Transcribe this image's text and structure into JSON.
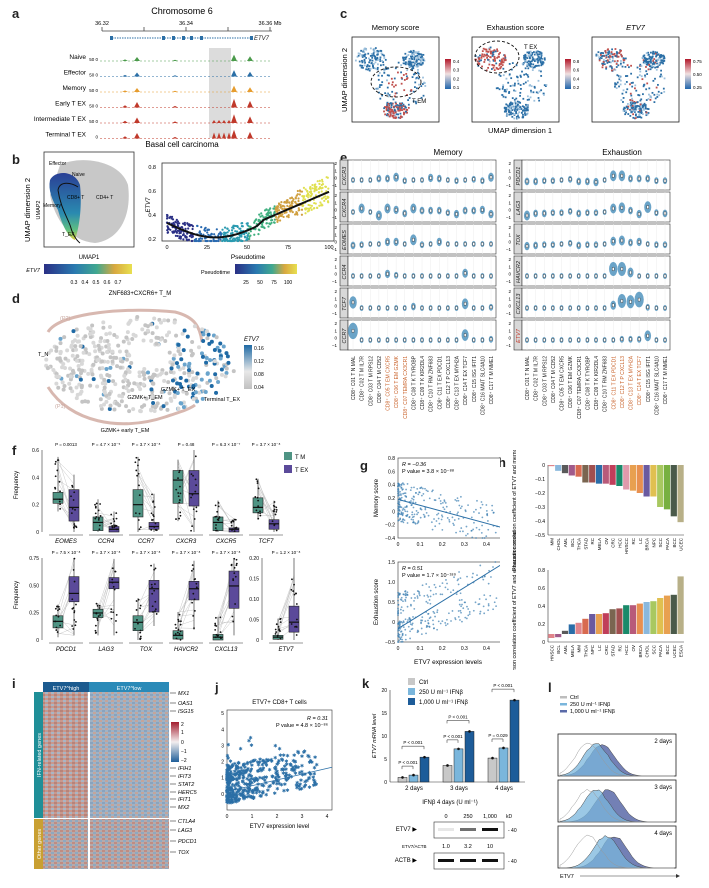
{
  "panel_labels": [
    "a",
    "b",
    "c",
    "d",
    "e",
    "f",
    "g",
    "h",
    "i",
    "j",
    "k",
    "l"
  ],
  "colors": {
    "blue": "#2b6fa6",
    "red": "#c0392b",
    "green": "#4a9a4a",
    "orange": "#e69c2e",
    "tm": "#4f9484",
    "tex": "#5b4a9a",
    "ctrl": "#c8c8c8",
    "ifn250": "#7ab6dc",
    "ifn1000": "#1d5c99",
    "orange_label": "#c9622a",
    "teal_bar": "#1f8f98",
    "gold_bar": "#c9a032"
  },
  "a": {
    "chrom_title": "Chromosome 6",
    "ticks": [
      "36.32",
      "36.34",
      "36.36 Mb"
    ],
    "gene": "ETV7",
    "tracks": [
      "Naive",
      "Effector",
      "Memory",
      "Early T_EX",
      "Intermediate T_EX",
      "Terminal T_EX"
    ],
    "ymax_label": "50",
    "ymin_label": "0",
    "caption": "Basal cell carcinoma"
  },
  "b": {
    "umap_ylabel": "UMAP dimension 2",
    "umap_inner_ylabel": "UMAP2",
    "umap_xlabel": "UMAP1",
    "annotations": [
      "Effector",
      "Naive",
      "CD8+ T",
      "CD4+ T",
      "Memory",
      "T_EX"
    ],
    "etv7_cbar_label": "ETV7",
    "etv7_cbar_ticks": [
      "0.3",
      "0.4",
      "0.5",
      "0.6",
      "0.7"
    ],
    "pseudo_cbar_label": "Pseudotime",
    "pseudo_cbar_ticks": [
      "25",
      "50",
      "75",
      "100"
    ]
  },
  "c": {
    "titles": [
      "Memory score",
      "Exhaustion score",
      "ETV7"
    ],
    "ylabel": "UMAP dimension 2",
    "xlabel": "UMAP dimension 1",
    "cbar1": [
      "0.4",
      "0.3",
      "0.2",
      "0.1"
    ],
    "cbar2": [
      "0.8",
      "0.6",
      "0.4",
      "0.2"
    ],
    "cbar3": [
      "0.75",
      "0.50",
      "0.25"
    ],
    "ann1": "T_EM",
    "ann2": "T_EX"
  },
  "d": {
    "top_label": "ZNF683+CXCR6+ T_M",
    "path_p2": "(P2)",
    "path_p1": "(P1)",
    "tn": "T_N",
    "gzmk_tem": "GZMK+ T_EM",
    "gzmk_tex": "GZMK+ T_EX",
    "terminal": "Terminal T_EX",
    "gzmk_early": "GZMK+ early T_EM",
    "cbar_label": "ETV7",
    "cbar_ticks": [
      "0.16",
      "0.12",
      "0.08",
      "0.04"
    ]
  },
  "e": {
    "memory_title": "Memory",
    "exhaustion_title": "Exhaustion",
    "memory_genes": [
      "CXCR3",
      "CXCR4",
      "EOMES",
      "CCR4",
      "TCF7",
      "CCR7"
    ],
    "exhaustion_genes": [
      "PDCD1",
      "LAG3",
      "TOX",
      "HAVCR2",
      "CXCL13",
      "ETV7"
    ],
    "clusters": [
      "CD8+ C01 T_N MAL",
      "CD8+ C02 T_M IL7R",
      "CD8+ C03 T_M RPS12",
      "CD8+ C04 T_M CD52",
      "CD8+ C05 T_EM CXCR5",
      "CD8+ C06 T_EM GZMK",
      "CD8+ C07 TEMRA CX3CR1",
      "CD8+ C08 T_K TYROBP",
      "CD8+ C09 T_K KIR2DL4",
      "CD8+ C10 T_RM ZNF683",
      "CD8+ C11 T_EX PDCD1",
      "CD8+ C12 T_P CXCL13",
      "CD8+ C13 T_EX MYH2A",
      "CD8+ C14 T_EX TCF7",
      "CD8+ C15 ISG IFIT1",
      "CD8+ C16 MAIT SLC4A10",
      "CD8+ C17 T_M NME1"
    ],
    "memory_highlight": [
      4,
      5,
      6
    ],
    "exhaustion_highlight": [
      10,
      11,
      12,
      13
    ]
  },
  "f": {
    "ylabel": "Frequency",
    "legend": [
      "T_M",
      "T_EX"
    ],
    "row1": [
      {
        "gene": "EOMES",
        "p": "P = 0.0013",
        "tm": [
          0.21,
          0.24,
          0.29,
          0.15,
          0.55
        ],
        "tex": [
          0.08,
          0.18,
          0.31,
          0.0,
          0.42
        ]
      },
      {
        "gene": "CCR4",
        "p": "P = 4.7 × 10⁻⁵",
        "tm": [
          0.01,
          0.07,
          0.11,
          0.0,
          0.24
        ],
        "tex": [
          0.0,
          0.02,
          0.04,
          0.0,
          0.15
        ]
      },
      {
        "gene": "CCR7",
        "p": "P = 3.7 × 10⁻⁸",
        "tm": [
          0.11,
          0.2,
          0.31,
          0.0,
          0.55
        ],
        "tex": [
          0.02,
          0.04,
          0.07,
          0.0,
          0.28
        ]
      },
      {
        "gene": "CXCR3",
        "p": "P = 0.48",
        "tm": [
          0.21,
          0.38,
          0.45,
          0.08,
          0.53
        ],
        "tex": [
          0.19,
          0.28,
          0.45,
          0.0,
          0.6
        ]
      },
      {
        "gene": "CXCR5",
        "p": "P = 6.3 × 10⁻⁷",
        "tm": [
          0.01,
          0.07,
          0.11,
          0.0,
          0.23
        ],
        "tex": [
          0.0,
          0.02,
          0.03,
          0.0,
          0.1
        ]
      },
      {
        "gene": "TCF7",
        "p": "P = 3.7 × 10⁻⁸",
        "tm": [
          0.14,
          0.18,
          0.25,
          0.09,
          0.39
        ],
        "tex": [
          0.02,
          0.06,
          0.09,
          0.0,
          0.23
        ]
      }
    ],
    "row1_ylim": [
      0,
      0.6
    ],
    "row1_ticks": [
      "0",
      "0.2",
      "0.4",
      "0.6"
    ],
    "row2": [
      {
        "gene": "PDCD1",
        "p": "P = 7.5 × 10⁻⁸",
        "tm": [
          0.13,
          0.2,
          0.26,
          0.03,
          0.38
        ],
        "tex": [
          0.41,
          0.5,
          0.68,
          0.05,
          0.88
        ]
      },
      {
        "gene": "LAG3",
        "p": "P = 3.7 × 10⁻⁸",
        "tm": [
          0.24,
          0.29,
          0.33,
          0.05,
          0.39
        ],
        "tex": [
          0.55,
          0.62,
          0.67,
          0.05,
          0.87
        ]
      },
      {
        "gene": "TOX",
        "p": "P = 3.7 × 10⁻⁸",
        "tm": [
          0.1,
          0.19,
          0.26,
          0.0,
          0.45
        ],
        "tex": [
          0.3,
          0.55,
          0.64,
          0.15,
          0.82
        ]
      },
      {
        "gene": "HAVCR2",
        "p": "P = 3.7 × 10⁻⁸",
        "tm": [
          0.01,
          0.05,
          0.1,
          0.0,
          0.3
        ],
        "tex": [
          0.43,
          0.55,
          0.63,
          0.11,
          0.85
        ]
      },
      {
        "gene": "CXCL13",
        "p": "P = 3.7 × 10⁻⁸",
        "tm": [
          0.0,
          0.03,
          0.06,
          0.0,
          0.25
        ],
        "tex": [
          0.34,
          0.58,
          0.74,
          0.05,
          0.88
        ]
      }
    ],
    "row2_ylim": [
      0,
      0.88
    ],
    "row2_ticks": [
      "0",
      "0.25",
      "0.50",
      "0.75"
    ],
    "etv7": {
      "gene": "ETV7",
      "p": "P = 1.2 × 10⁻⁸",
      "tm": [
        0.002,
        0.008,
        0.013,
        0.0,
        0.06
      ],
      "tex": [
        0.022,
        0.05,
        0.095,
        0.0,
        0.23
      ]
    },
    "etv7_ylim": [
      0,
      0.23
    ],
    "etv7_ticks": [
      "0",
      "0.05",
      "0.10",
      "0.15",
      "0.20"
    ]
  },
  "g": {
    "top_ylabel": "Memory score",
    "top_r": "R = −0.36",
    "top_p": "P value = 3.8 × 10⁻⁸⁸",
    "top_yticks": [
      "0.8",
      "0.6",
      "0.4",
      "0.2",
      "0",
      "−0.2",
      "−0.4"
    ],
    "bot_ylabel": "Exhaustion score",
    "bot_r": "R = 0.51",
    "bot_p": "P value = 1.7 × 10⁻¹⁸⁹",
    "bot_yticks": [
      "1.5",
      "1.0",
      "0.5",
      "0",
      "−0.5"
    ],
    "xticks": [
      "0",
      "0.1",
      "0.2",
      "0.3",
      "0.4",
      "0.5"
    ],
    "xlabel": "ETV7 expression levels"
  },
  "h": {
    "top_ylabel": "Pearson correlation coefficient of ETV7 and memory score",
    "top_categories": [
      "MM",
      "CHOL",
      "AML",
      "BCL",
      "THCA",
      "STAD",
      "RC",
      "MELA",
      "OV",
      "CRC",
      "HCC",
      "HNSCC",
      "RC",
      "LC",
      "BRCA",
      "NPC",
      "SCC",
      "PACA",
      "BCC",
      "UCEC"
    ],
    "top_values": [
      -0.01,
      -0.05,
      -0.07,
      -0.09,
      -0.1,
      -0.15,
      -0.15,
      -0.16,
      -0.16,
      -0.17,
      -0.18,
      -0.21,
      -0.22,
      -0.24,
      -0.27,
      -0.27,
      -0.36,
      -0.38,
      -0.44,
      -0.49
    ],
    "top_colors": [
      "#e0848a",
      "#8ab8dd",
      "#5a5a5a",
      "#a15a8a",
      "#d86a50",
      "#7a6550",
      "#a04f4f",
      "#2a6da8",
      "#b85a7a",
      "#c03e5a",
      "#1a8a6a",
      "#e09aac",
      "#e8a050",
      "#e89050",
      "#6a5aa0",
      "#e0c050",
      "#a8c860",
      "#78b040",
      "#4a5a4a",
      "#b8b088"
    ],
    "top_yticks": [
      "0",
      "−0.1",
      "−0.2",
      "−0.3",
      "−0.4",
      "−0.5"
    ],
    "bot_ylabel": "Pearson correlation coefficient of ETV7 and exhaustion score",
    "bot_categories": [
      "HNSCC",
      "BCL",
      "AML",
      "MELA",
      "MM",
      "THCA",
      "NPC",
      "LC",
      "CRC",
      "STAD",
      "RC",
      "HCC",
      "OV",
      "BRCA",
      "CHOL",
      "SCC",
      "PACA",
      "BCC",
      "UCEC",
      "ESCA"
    ],
    "bot_values": [
      -0.05,
      -0.04,
      0.04,
      0.12,
      0.14,
      0.19,
      0.25,
      0.25,
      0.26,
      0.31,
      0.32,
      0.36,
      0.36,
      0.38,
      0.4,
      0.41,
      0.45,
      0.48,
      0.49,
      0.72
    ],
    "bot_colors": [
      "#e0848a",
      "#a15a8a",
      "#5a5a5a",
      "#2a6da8",
      "#e0848a",
      "#d86a50",
      "#6a5aa0",
      "#e8a050",
      "#c03e5a",
      "#7a6550",
      "#a04f4f",
      "#1a8a6a",
      "#b85a7a",
      "#e89050",
      "#8ab8dd",
      "#a8c860",
      "#e0c050",
      "#e8a050",
      "#4a5a4a",
      "#b8b088"
    ],
    "bot_yticks": [
      "0.8",
      "0.6",
      "0.4",
      "0.2",
      "0"
    ]
  },
  "i": {
    "col_high": "ETV7^high",
    "col_low": "ETV7^low",
    "row_ifn": "IFN-related genes",
    "row_other": "Other genes",
    "genes_ifn": [
      "MX1",
      "OAS1",
      "ISG15",
      "IFIH1",
      "IFIT3",
      "STAT2",
      "HERC5",
      "IFIT1",
      "MX2"
    ],
    "genes_other": [
      "CTLA4",
      "LAG3",
      "PDCD1",
      "TOX"
    ],
    "cbar_ticks": [
      "2",
      "1",
      "0",
      "−1",
      "−2"
    ]
  },
  "j": {
    "title": "ETV7+ CD8+ T cells",
    "ylabel": "ISG score",
    "xlabel": "ETV7 expression level",
    "r": "R = 0.31",
    "p": "P value = 4.8 × 10⁻⁸⁶",
    "yticks": [
      "5",
      "4",
      "3",
      "2",
      "1",
      "0"
    ],
    "xticks": [
      "0",
      "1",
      "2",
      "3",
      "4"
    ]
  },
  "k": {
    "legend": [
      "Ctrl",
      "250 U ml⁻¹ IFNβ",
      "1,000 U ml⁻¹ IFNβ"
    ],
    "ylabel": "ETV7 mRNA level",
    "yticks": [
      "20",
      "15",
      "10",
      "5",
      "0"
    ],
    "groups": [
      "2 days",
      "3 days",
      "4 days"
    ],
    "values": [
      [
        1.0,
        1.5,
        5.4
      ],
      [
        3.6,
        7.2,
        11.0
      ],
      [
        5.2,
        7.4,
        17.8
      ]
    ],
    "pvals": [
      [
        "P < 0.001",
        "P < 0.001"
      ],
      [
        "P < 0.001",
        "P < 0.001"
      ],
      [
        "P = 0.029",
        "P < 0.001"
      ]
    ],
    "blot_title": "IFNβ 4 days (U ml⁻¹)",
    "blot_cols": [
      "0",
      "250",
      "1,000"
    ],
    "kd": "kD",
    "etv7": "ETV7",
    "actb": "ACTB",
    "ratio_label": "ETV7/ACTB",
    "ratios": [
      "1.0",
      "3.2",
      "10"
    ],
    "mw": "40"
  },
  "l": {
    "legend": [
      "Ctrl",
      "250 U ml⁻¹ IFNβ",
      "1,000 U ml⁻¹ IFNβ"
    ],
    "panels": [
      "2 days",
      "3 days",
      "4 days"
    ],
    "xlabel": "ETV7"
  }
}
